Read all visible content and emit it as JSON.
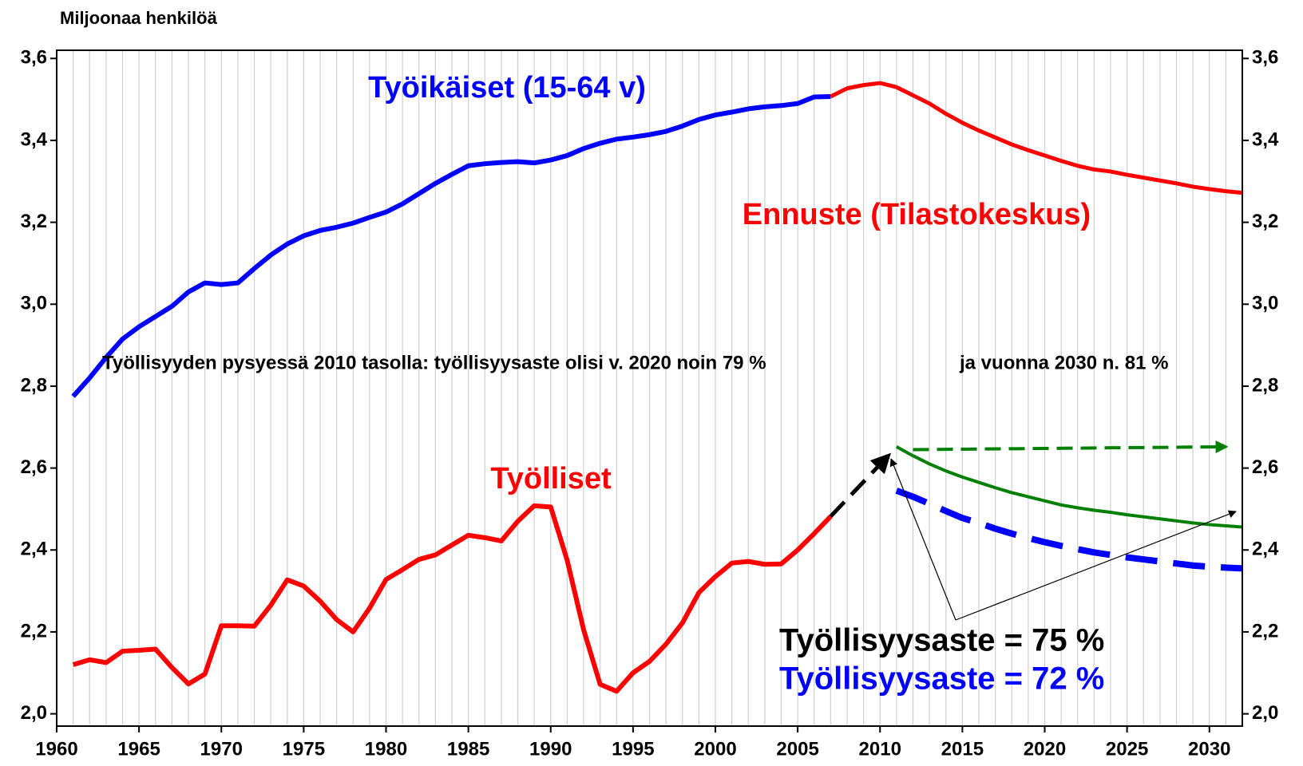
{
  "chart_data": {
    "type": "line",
    "y_axis_label": "Miljoonaa henkilöä",
    "xlim": [
      1960,
      2032
    ],
    "xticks": [
      1960,
      1965,
      1970,
      1975,
      1980,
      1985,
      1990,
      1995,
      2000,
      2005,
      2010,
      2015,
      2020,
      2025,
      2030
    ],
    "ylim": [
      1.97,
      3.62
    ],
    "yticks": [
      {
        "value": 2.0,
        "label": "2,0"
      },
      {
        "value": 2.2,
        "label": "2,2"
      },
      {
        "value": 2.4,
        "label": "2,4"
      },
      {
        "value": 2.6,
        "label": "2,6"
      },
      {
        "value": 2.8,
        "label": "2,8"
      },
      {
        "value": 3.0,
        "label": "3,0"
      },
      {
        "value": 3.2,
        "label": "3,2"
      },
      {
        "value": 3.4,
        "label": "3,4"
      },
      {
        "value": 3.6,
        "label": "3,6"
      }
    ],
    "y2lim": [
      1.97,
      3.62
    ],
    "y2ticks": [
      {
        "value": 2.0,
        "label": "2,0"
      },
      {
        "value": 2.2,
        "label": "2,2"
      },
      {
        "value": 2.4,
        "label": "2,4"
      },
      {
        "value": 2.6,
        "label": "2,6"
      },
      {
        "value": 2.8,
        "label": "2,8"
      },
      {
        "value": 3.0,
        "label": "3,0"
      },
      {
        "value": 3.2,
        "label": "3,2"
      },
      {
        "value": 3.4,
        "label": "3,4"
      },
      {
        "value": 3.6,
        "label": "3,6"
      }
    ],
    "grid": true,
    "annotations": [
      "Työllisyyden pysyessä 2010 tasolla: työllisyysaste olisi v. 2020 noin 79 %",
      "ja vuonna 2030 n. 81 %"
    ],
    "series": [
      {
        "name": "Työikäiset (15-64 v)",
        "color": "#0000ff",
        "width": 6,
        "style": "solid",
        "x": [
          1961,
          1962,
          1963,
          1964,
          1965,
          1966,
          1967,
          1968,
          1969,
          1970,
          1971,
          1972,
          1973,
          1974,
          1975,
          1976,
          1977,
          1978,
          1979,
          1980,
          1981,
          1982,
          1983,
          1984,
          1985,
          1986,
          1987,
          1988,
          1989,
          1990,
          1991,
          1992,
          1993,
          1994,
          1995,
          1996,
          1997,
          1998,
          1999,
          2000,
          2001,
          2002,
          2003,
          2004,
          2005,
          2006,
          2007
        ],
        "values": [
          2.775,
          2.82,
          2.87,
          2.915,
          2.945,
          2.97,
          2.995,
          3.03,
          3.052,
          3.048,
          3.052,
          3.087,
          3.12,
          3.147,
          3.167,
          3.18,
          3.188,
          3.198,
          3.212,
          3.225,
          3.245,
          3.27,
          3.295,
          3.317,
          3.338,
          3.343,
          3.346,
          3.348,
          3.345,
          3.352,
          3.363,
          3.38,
          3.393,
          3.403,
          3.408,
          3.414,
          3.422,
          3.435,
          3.451,
          3.462,
          3.469,
          3.477,
          3.482,
          3.485,
          3.49,
          3.506,
          3.507
        ]
      },
      {
        "name": "Ennuste (Tilastokeskus)",
        "color": "#ff0000",
        "width": 5,
        "style": "solid",
        "x": [
          2007,
          2008,
          2009,
          2010,
          2011,
          2012,
          2013,
          2014,
          2015,
          2016,
          2017,
          2018,
          2019,
          2020,
          2021,
          2022,
          2023,
          2024,
          2025,
          2026,
          2027,
          2028,
          2029,
          2030,
          2031,
          2032
        ],
        "values": [
          3.507,
          3.527,
          3.535,
          3.54,
          3.53,
          3.51,
          3.49,
          3.465,
          3.443,
          3.424,
          3.407,
          3.39,
          3.376,
          3.363,
          3.35,
          3.338,
          3.329,
          3.324,
          3.316,
          3.309,
          3.302,
          3.295,
          3.287,
          3.281,
          3.276,
          3.272
        ]
      },
      {
        "name": "Työlliset",
        "color": "#ff0000",
        "width": 6,
        "style": "solid",
        "x": [
          1961,
          1962,
          1963,
          1964,
          1965,
          1966,
          1967,
          1968,
          1969,
          1970,
          1971,
          1972,
          1973,
          1974,
          1975,
          1976,
          1977,
          1978,
          1979,
          1980,
          1981,
          1982,
          1983,
          1984,
          1985,
          1986,
          1987,
          1988,
          1989,
          1990,
          1991,
          1992,
          1993,
          1994,
          1995,
          1996,
          1997,
          1998,
          1999,
          2000,
          2001,
          2002,
          2003,
          2004,
          2005,
          2006,
          2007
        ],
        "values": [
          2.12,
          2.132,
          2.125,
          2.153,
          2.155,
          2.158,
          2.113,
          2.073,
          2.097,
          2.215,
          2.215,
          2.214,
          2.265,
          2.327,
          2.312,
          2.275,
          2.23,
          2.2,
          2.258,
          2.328,
          2.352,
          2.377,
          2.388,
          2.412,
          2.436,
          2.43,
          2.422,
          2.47,
          2.508,
          2.505,
          2.375,
          2.205,
          2.072,
          2.055,
          2.1,
          2.128,
          2.17,
          2.222,
          2.296,
          2.335,
          2.368,
          2.372,
          2.365,
          2.366,
          2.4,
          2.44,
          2.482
        ]
      },
      {
        "color": "#000000",
        "width": 5,
        "style": "dashed",
        "arrow": true,
        "x": [
          2007,
          2010.5
        ],
        "values": [
          2.482,
          2.63
        ]
      },
      {
        "name": "Työllisyysaste = 75 %",
        "color": "#008000",
        "width": 4,
        "style": "solid",
        "x": [
          2011,
          2012,
          2013,
          2014,
          2015,
          2016,
          2017,
          2018,
          2019,
          2020,
          2021,
          2022,
          2023,
          2024,
          2025,
          2026,
          2027,
          2028,
          2029,
          2030,
          2031,
          2032
        ],
        "values": [
          2.652,
          2.63,
          2.61,
          2.593,
          2.578,
          2.565,
          2.552,
          2.54,
          2.53,
          2.52,
          2.51,
          2.503,
          2.497,
          2.492,
          2.486,
          2.481,
          2.476,
          2.471,
          2.466,
          2.462,
          2.459,
          2.456
        ]
      },
      {
        "color": "#008000",
        "width": 4,
        "style": "dashed",
        "arrow": true,
        "x": [
          2012,
          2031
        ],
        "values": [
          2.645,
          2.652
        ]
      },
      {
        "name": "Työllisyysaste = 72 %",
        "color": "#0000ff",
        "width": 8,
        "style": "dashed",
        "x": [
          2011,
          2012,
          2013,
          2014,
          2015,
          2016,
          2017,
          2018,
          2019,
          2020,
          2021,
          2022,
          2023,
          2024,
          2025,
          2026,
          2027,
          2028,
          2029,
          2030,
          2031,
          2032
        ],
        "values": [
          2.545,
          2.53,
          2.513,
          2.495,
          2.478,
          2.466,
          2.452,
          2.44,
          2.429,
          2.419,
          2.41,
          2.402,
          2.394,
          2.388,
          2.382,
          2.377,
          2.372,
          2.367,
          2.362,
          2.359,
          2.357,
          2.355
        ]
      }
    ]
  }
}
